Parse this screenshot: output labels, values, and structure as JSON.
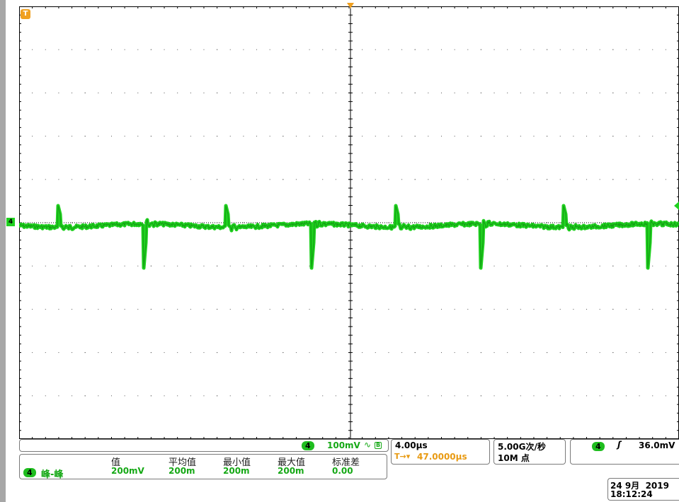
{
  "channel": {
    "number": "4",
    "scale": "100mV",
    "coupling_symbol": "∿",
    "bandwidth_symbol": "B",
    "color": "#1fd01f",
    "marker_label": "4"
  },
  "trigger_marker": {
    "label": "T",
    "color": "#f0a020"
  },
  "timebase": {
    "scale": "4.00µs",
    "trigger_symbol": "T→▾",
    "position": "47.0000µs"
  },
  "acquisition": {
    "sample_rate": "5.00G次/秒",
    "record_length": "10M 点"
  },
  "trigger": {
    "source": "4",
    "slope_symbol": "ʃ",
    "level": "36.0mV"
  },
  "measurement": {
    "source": "4",
    "name": "峰-峰",
    "headers": [
      "值",
      "平均值",
      "最小值",
      "最大值",
      "标准差"
    ],
    "values": [
      "200mV",
      "200m",
      "200m",
      "200m",
      "0.00"
    ]
  },
  "datetime": {
    "date": "24 9月  2019",
    "time": "18:12:24"
  },
  "colors": {
    "trace": "#1fd01f",
    "trace_dark": "#0c7a0c",
    "grid": "#000000",
    "status_border": "#7a7a7a",
    "accent": "#f0a020"
  }
}
